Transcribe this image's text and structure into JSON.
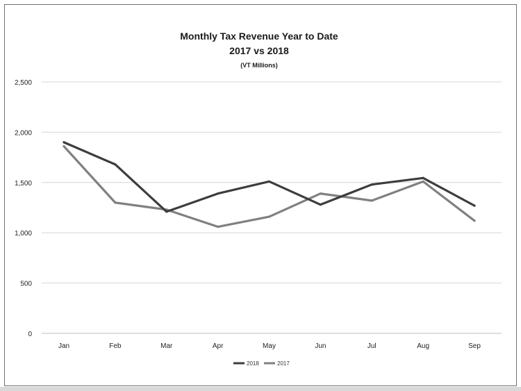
{
  "chart_data": {
    "type": "line",
    "title": "Monthly Tax Revenue Year to Date",
    "subtitle": "2017 vs 2018",
    "unit_label": "(VT Millions)",
    "categories": [
      "Jan",
      "Feb",
      "Mar",
      "Apr",
      "May",
      "Jun",
      "Jul",
      "Aug",
      "Sep"
    ],
    "ylim": [
      0,
      2500
    ],
    "yticks": [
      0,
      500,
      1000,
      1500,
      2000,
      2500
    ],
    "ytick_labels": [
      "0",
      "500",
      "1,000",
      "1,500",
      "2,000",
      "2,500"
    ],
    "grid": true,
    "legend_position": "bottom",
    "series": [
      {
        "name": "2018",
        "color": "#3d3d3d",
        "values": [
          1900,
          1680,
          1210,
          1390,
          1510,
          1280,
          1480,
          1545,
          1270
        ]
      },
      {
        "name": "2017",
        "color": "#808080",
        "values": [
          1860,
          1300,
          1230,
          1060,
          1160,
          1390,
          1320,
          1510,
          1120
        ]
      }
    ]
  }
}
